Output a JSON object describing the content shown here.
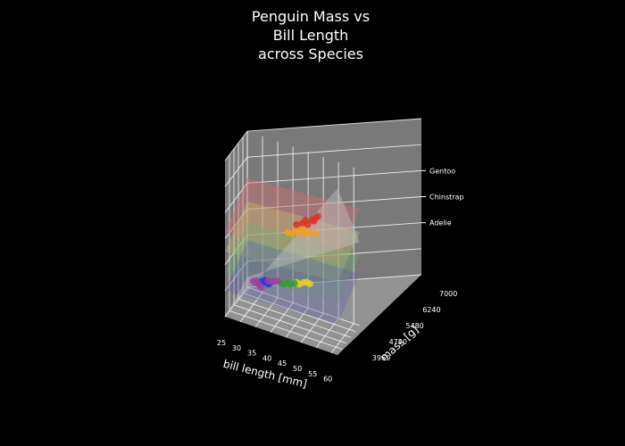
{
  "chart_data": {
    "type": "scatter",
    "title": "Penguin Mass vs\nBill Length\nacross Species",
    "title_lines": [
      "Penguin Mass vs",
      "Bill Length",
      "across Species"
    ],
    "xlabel": "bill length [mm]",
    "ylabel": "mass [g]",
    "zlabel": "",
    "xlim": [
      25,
      62
    ],
    "ylim": [
      3200,
      7000
    ],
    "zlim": [
      0,
      3
    ],
    "x_ticks": [
      "25",
      "30",
      "35",
      "40",
      "45",
      "50",
      "55",
      "60"
    ],
    "y_ticks": [
      "3960",
      "4720",
      "5480",
      "6240",
      "7000"
    ],
    "z_ticks": [
      "Adelie",
      "Chinstrap",
      "Gentoo"
    ],
    "z_tick_values": [
      1,
      1.5,
      2
    ],
    "grid": true,
    "pane_color": "#808080",
    "series": [
      {
        "color": "#e03020",
        "points": [
          [
            47,
            5500,
            1.95
          ],
          [
            49,
            5600,
            1.98
          ],
          [
            50,
            5700,
            2.02
          ],
          [
            48,
            5400,
            1.9
          ],
          [
            46.5,
            5200,
            1.92
          ],
          [
            50.5,
            5800,
            2.05
          ],
          [
            49.5,
            5650,
            1.96
          ],
          [
            45,
            5000,
            1.9
          ]
        ]
      },
      {
        "color": "#f0a020",
        "points": [
          [
            44,
            4100,
            1.86
          ],
          [
            46,
            4300,
            1.9
          ],
          [
            48,
            4500,
            1.94
          ],
          [
            47,
            4400,
            1.88
          ],
          [
            45,
            4200,
            1.85
          ],
          [
            52,
            4600,
            1.93
          ],
          [
            50,
            4550,
            1.92
          ],
          [
            49,
            4450,
            1.9
          ]
        ]
      },
      {
        "color": "#e8d020",
        "points": [
          [
            47,
            4000,
            0.98
          ],
          [
            49,
            4100,
            1.0
          ],
          [
            50,
            4150,
            1.02
          ],
          [
            48,
            3950,
            0.97
          ],
          [
            51,
            4200,
            1.0
          ]
        ]
      },
      {
        "color": "#30a030",
        "points": [
          [
            42,
            3900,
            0.88
          ],
          [
            44,
            4050,
            0.9
          ],
          [
            46,
            4150,
            0.92
          ],
          [
            45,
            4000,
            0.9
          ],
          [
            43,
            3850,
            0.88
          ]
        ]
      },
      {
        "color": "#2040e0",
        "points": [
          [
            36,
            3500,
            0.84
          ],
          [
            37,
            3550,
            0.85
          ],
          [
            38,
            3600,
            0.86
          ],
          [
            36.5,
            3450,
            0.84
          ],
          [
            37.5,
            3650,
            0.86
          ],
          [
            38.5,
            3500,
            0.85
          ],
          [
            37,
            3700,
            0.87
          ],
          [
            39,
            3550,
            0.86
          ]
        ]
      },
      {
        "color": "#a040a0",
        "points": [
          [
            35,
            3400,
            0.86
          ],
          [
            36,
            3300,
            0.82
          ],
          [
            38,
            3800,
            0.86
          ],
          [
            40,
            3850,
            0.88
          ],
          [
            37,
            3200,
            0.8
          ],
          [
            41,
            3900,
            0.9
          ],
          [
            39,
            3750,
            0.88
          ],
          [
            34,
            3350,
            0.84
          ]
        ]
      }
    ],
    "surfaces": [
      {
        "color": "#d07070",
        "opacity": 0.45,
        "z_corners": [
          [
            1.6,
            1.75
          ],
          [
            2.1,
            2.25
          ]
        ]
      },
      {
        "color": "#c0c070",
        "opacity": 0.4,
        "z_corners": [
          [
            1.25,
            1.4
          ],
          [
            1.65,
            1.8
          ]
        ]
      },
      {
        "color": "#70b070",
        "opacity": 0.35,
        "z_corners": [
          [
            0.85,
            1.0
          ],
          [
            1.25,
            1.35
          ]
        ]
      },
      {
        "color": "#6060b0",
        "opacity": 0.35,
        "z_corners": [
          [
            0.5,
            0.6
          ],
          [
            0.9,
            1.0
          ]
        ]
      },
      {
        "color": "#c0c0c0",
        "opacity": 0.45,
        "z_corners": [
          [
            0.0,
            3.2
          ],
          [
            0.2,
            1.6
          ]
        ]
      }
    ]
  }
}
